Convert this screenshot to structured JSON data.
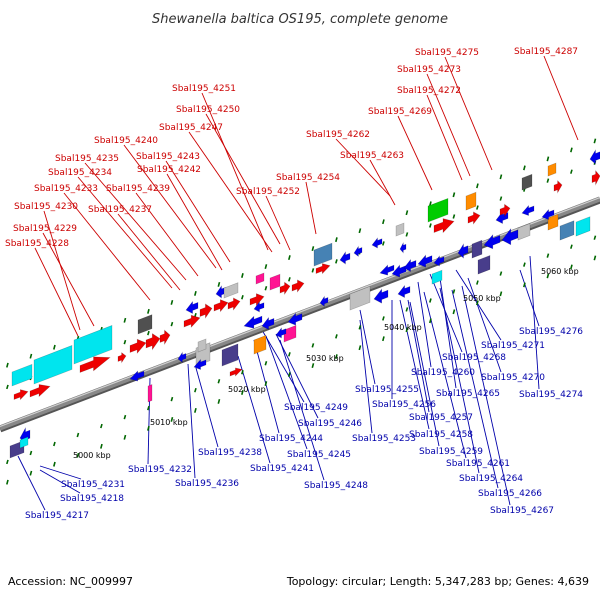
{
  "title": "Shewanella baltica OS195, complete genome",
  "footer": {
    "accession": "Accession: NC_009997",
    "summary": "Topology: circular; Length: 5,347,283 bp; Genes: 4,639"
  },
  "colors": {
    "label_red": "#cc0000",
    "label_blue": "#0000aa",
    "forward_cds": "#ee0000",
    "reverse_cds": "#0000ee",
    "backbone": "#888888",
    "tick": "#006600"
  },
  "kbp_labels": [
    "5000 kbp",
    "5010 kbp",
    "5020 kbp",
    "5030 kbp",
    "5040 kbp",
    "5050 kbp",
    "5060 kbp"
  ],
  "red_labels": [
    "Sbal195_4287",
    "Sbal195_4275",
    "Sbal195_4273",
    "Sbal195_4272",
    "Sbal195_4269",
    "Sbal195_4251",
    "Sbal195_4250",
    "Sbal195_4247",
    "Sbal195_4262",
    "Sbal195_4263",
    "Sbal195_4240",
    "Sbal195_4243",
    "Sbal195_4235",
    "Sbal195_4242",
    "Sbal195_4234",
    "Sbal195_4254",
    "Sbal195_4233",
    "Sbal195_4239",
    "Sbal195_4252",
    "Sbal195_4230",
    "Sbal195_4237",
    "Sbal195_4229",
    "Sbal195_4228"
  ],
  "blue_labels": [
    "Sbal195_4276",
    "Sbal195_4271",
    "Sbal195_4268",
    "Sbal195_4260",
    "Sbal195_4270",
    "Sbal195_4255",
    "Sbal195_4265",
    "Sbal195_4274",
    "Sbal195_4249",
    "Sbal195_4256",
    "Sbal195_4257",
    "Sbal195_4246",
    "Sbal195_4253",
    "Sbal195_4244",
    "Sbal195_4258",
    "Sbal195_4238",
    "Sbal195_4245",
    "Sbal195_4259",
    "Sbal195_4241",
    "Sbal195_4261",
    "Sbal195_4232",
    "Sbal195_4236",
    "Sbal195_4264",
    "Sbal195_4248",
    "Sbal195_4231",
    "Sbal195_4266",
    "Sbal195_4218",
    "Sbal195_4267",
    "Sbal195_4217"
  ],
  "feature_palette": [
    "#ee0000",
    "#0000ee",
    "#00e5ee",
    "#00cc00",
    "#ff8c00",
    "#ff1493",
    "#483d8b",
    "#4682b4",
    "#a9a9a9",
    "#505050",
    "#c0c0c0"
  ]
}
